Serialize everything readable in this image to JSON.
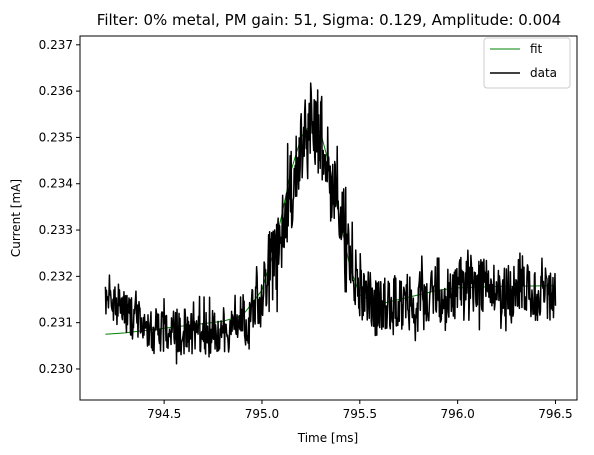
{
  "chart_data": {
    "type": "line",
    "title": "Filter: 0% metal, PM gain: 51, Sigma: 0.129, Amplitude: 0.004",
    "xlabel": "Time [ms]",
    "ylabel": "Current [mA]",
    "xlim": [
      794.07,
      796.61
    ],
    "ylim": [
      0.22933,
      0.23719
    ],
    "x_ticks": [
      794.5,
      795.0,
      795.5,
      796.0,
      796.5
    ],
    "x_tick_labels": [
      "794.5",
      "795.0",
      "795.5",
      "796.0",
      "796.5"
    ],
    "y_ticks": [
      0.23,
      0.231,
      0.232,
      0.233,
      0.234,
      0.235,
      0.236,
      0.237
    ],
    "y_tick_labels": [
      "0.230",
      "0.231",
      "0.232",
      "0.233",
      "0.234",
      "0.235",
      "0.236",
      "0.237"
    ],
    "grid": false,
    "legend": {
      "position": "top-right",
      "entries": [
        {
          "label": "fit",
          "color": "#008000"
        },
        {
          "label": "data",
          "color": "#000000"
        }
      ]
    },
    "series": [
      {
        "name": "fit",
        "color": "#008000",
        "x": [
          794.2,
          794.3,
          794.4,
          794.5,
          794.6,
          794.7,
          794.8,
          794.9,
          795.0,
          795.05,
          795.1,
          795.15,
          795.2,
          795.25,
          795.3,
          795.35,
          795.4,
          795.45,
          795.5,
          795.6,
          795.7,
          795.8,
          795.9,
          796.0,
          796.2,
          796.5
        ],
        "values": [
          0.23075,
          0.23078,
          0.23083,
          0.23088,
          0.23093,
          0.23098,
          0.23103,
          0.23115,
          0.2317,
          0.2324,
          0.2333,
          0.2343,
          0.235,
          0.2353,
          0.2351,
          0.2343,
          0.2332,
          0.2322,
          0.2316,
          0.2314,
          0.2315,
          0.2316,
          0.2317,
          0.23175,
          0.23178,
          0.2318
        ]
      },
      {
        "name": "data",
        "color": "#000000",
        "x": [
          794.2,
          794.25,
          794.3,
          794.35,
          794.4,
          794.45,
          794.5,
          794.55,
          794.6,
          794.65,
          794.7,
          794.75,
          794.8,
          794.85,
          794.9,
          794.95,
          795.0,
          795.05,
          795.1,
          795.15,
          795.2,
          795.25,
          795.3,
          795.35,
          795.4,
          795.45,
          795.5,
          795.55,
          795.6,
          795.65,
          795.7,
          795.75,
          795.8,
          795.85,
          795.9,
          795.95,
          796.0,
          796.05,
          796.1,
          796.15,
          796.2,
          796.25,
          796.3,
          796.35,
          796.4,
          796.45,
          796.5
        ],
        "mean": [
          0.2316,
          0.2314,
          0.2312,
          0.231,
          0.2309,
          0.2308,
          0.2308,
          0.2308,
          0.2308,
          0.2308,
          0.2308,
          0.2308,
          0.2308,
          0.2309,
          0.231,
          0.2313,
          0.2317,
          0.2322,
          0.233,
          0.2339,
          0.2347,
          0.2353,
          0.2351,
          0.2343,
          0.2332,
          0.2324,
          0.2317,
          0.2315,
          0.2314,
          0.2314,
          0.2315,
          0.2316,
          0.2315,
          0.2315,
          0.2316,
          0.2316,
          0.2318,
          0.2319,
          0.2318,
          0.2318,
          0.2318,
          0.2317,
          0.2317,
          0.2317,
          0.2316,
          0.2316,
          0.2316
        ],
        "spread": [
          0.00045,
          0.00048,
          0.00048,
          0.0005,
          0.0005,
          0.0005,
          0.0005,
          0.0005,
          0.0005,
          0.0005,
          0.0005,
          0.0005,
          0.0005,
          0.0005,
          0.0006,
          0.0007,
          0.0008,
          0.0009,
          0.0009,
          0.0009,
          0.0009,
          0.0009,
          0.0009,
          0.0009,
          0.0008,
          0.0007,
          0.0006,
          0.0006,
          0.0006,
          0.0006,
          0.0006,
          0.0006,
          0.0006,
          0.0006,
          0.0006,
          0.0006,
          0.0006,
          0.0006,
          0.0006,
          0.0006,
          0.0006,
          0.0006,
          0.0006,
          0.0006,
          0.0006,
          0.0006,
          0.0006
        ]
      }
    ]
  }
}
